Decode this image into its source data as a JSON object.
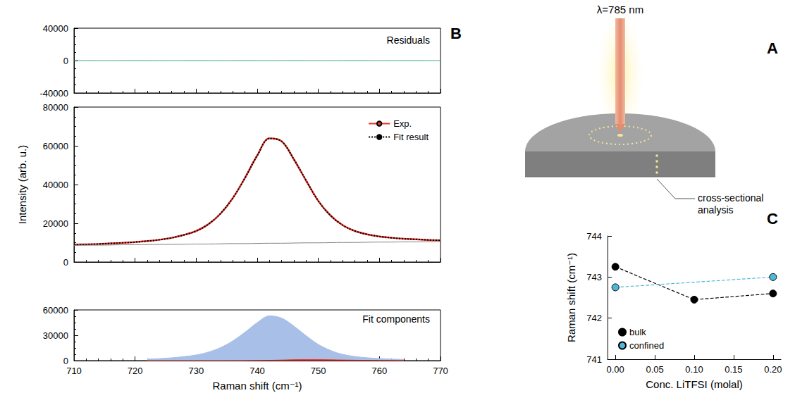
{
  "chart_data": [
    {
      "type": "line",
      "title": "Residuals",
      "annotations": [
        "B"
      ],
      "x": [
        710,
        712,
        714,
        716,
        718,
        720,
        722,
        724,
        726,
        728,
        730,
        732,
        734,
        736,
        738,
        740,
        742,
        744,
        746,
        748,
        750,
        752,
        754,
        756,
        758,
        760,
        762,
        764,
        766,
        768,
        770
      ],
      "series": [
        {
          "color": "#3aa58a",
          "line_style": "solid",
          "values": [
            0,
            50,
            0,
            -50,
            0,
            100,
            0,
            -100,
            0,
            0,
            100,
            0,
            -100,
            0,
            100,
            0,
            -100,
            0,
            100,
            0,
            -100,
            0,
            0,
            50,
            0,
            -50,
            0,
            0,
            50,
            0,
            0
          ]
        }
      ],
      "xlim": [
        710,
        770
      ],
      "xticks": [
        710,
        720,
        730,
        740,
        750,
        760,
        770
      ],
      "ylim": [
        -40000,
        40000
      ],
      "yticks": [
        -40000,
        0,
        40000
      ],
      "tick_labels": "y",
      "grid": false
    },
    {
      "type": "line",
      "ylabel": "Intensity (arb. u.)",
      "x": [
        710,
        712,
        714,
        716,
        718,
        720,
        722,
        724,
        726,
        728,
        730,
        732,
        734,
        736,
        738,
        740,
        742,
        744,
        746,
        748,
        750,
        752,
        754,
        756,
        758,
        760,
        762,
        764,
        766,
        768,
        770
      ],
      "series": [
        {
          "name": "Exp.",
          "color": "#e8312a",
          "line_style": "solid",
          "values": [
            9000,
            9100,
            9300,
            9600,
            9900,
            10300,
            10800,
            11500,
            12500,
            14000,
            16000,
            19500,
            25000,
            33000,
            43500,
            55000,
            63800,
            62300,
            53000,
            42000,
            31500,
            24000,
            19000,
            16000,
            14300,
            13200,
            12500,
            12000,
            11700,
            11400,
            11200
          ]
        },
        {
          "name": "Fit result",
          "color": "#000000",
          "line_style": "dotted",
          "values": [
            9000,
            9100,
            9300,
            9600,
            9900,
            10300,
            10800,
            11500,
            12500,
            14000,
            16000,
            19500,
            25100,
            33000,
            43400,
            55000,
            63800,
            62300,
            53000,
            42100,
            31500,
            24000,
            19000,
            16000,
            14300,
            13200,
            12500,
            12000,
            11700,
            11400,
            11200
          ]
        },
        {
          "color": "#808080",
          "line_style": "solid",
          "values": [
            8600,
            8700,
            8700,
            8800,
            8900,
            8900,
            9000,
            9100,
            9100,
            9200,
            9300,
            9300,
            9400,
            9500,
            9500,
            9600,
            9700,
            9700,
            9800,
            9900,
            9900,
            10000,
            10100,
            10100,
            10200,
            10300,
            10300,
            10400,
            10400,
            10500,
            10600
          ]
        }
      ],
      "xlim": [
        710,
        770
      ],
      "xticks": [
        710,
        720,
        730,
        740,
        750,
        760,
        770
      ],
      "ylim": [
        0,
        80000
      ],
      "yticks": [
        0,
        20000,
        40000,
        60000,
        80000
      ],
      "legend": "upper right",
      "tick_labels": "y",
      "grid": false
    },
    {
      "type": "area",
      "title": "Fit components",
      "xlabel": "Raman shift (cm⁻¹)",
      "x": [
        722,
        724,
        726,
        728,
        730,
        732,
        734,
        736,
        738,
        740,
        742,
        744,
        746,
        748,
        750,
        752,
        754,
        756,
        758,
        760,
        762,
        764
      ],
      "series": [
        {
          "color": "#a8bfe8",
          "values": [
            1800,
            2400,
            3400,
            4800,
            6700,
            10100,
            15500,
            23400,
            33700,
            45000,
            53000,
            50300,
            40900,
            29500,
            19200,
            12100,
            7400,
            4900,
            3400,
            2500,
            1800,
            1400
          ]
        },
        {
          "color": "#e8372a",
          "values": [
            0,
            0,
            0,
            0,
            0,
            0,
            0,
            50,
            100,
            200,
            350,
            700,
            1100,
            1300,
            1200,
            1000,
            750,
            500,
            350,
            250,
            180,
            100
          ]
        }
      ],
      "xlim": [
        710,
        770
      ],
      "xticks": [
        710,
        720,
        730,
        740,
        750,
        760,
        770
      ],
      "ylim": [
        0,
        60000
      ],
      "yticks": [
        0,
        30000,
        60000
      ],
      "grid": false
    },
    {
      "type": "line",
      "annotations": [
        "C"
      ],
      "xlabel": "Conc. LiTFSI (molal)",
      "ylabel": "Raman shift (cm⁻¹)",
      "series": [
        {
          "name": "bulk",
          "color": "#000000",
          "marker": "circle",
          "line_style": "dashed",
          "x": [
            0,
            0.1,
            0.2
          ],
          "values": [
            743.25,
            742.45,
            742.6
          ]
        },
        {
          "name": "confined",
          "color": "#4fb8d8",
          "marker": "circle",
          "line_style": "dashed",
          "x": [
            0,
            0.2
          ],
          "values": [
            742.75,
            743.0
          ]
        }
      ],
      "xlim": [
        -0.01,
        0.21
      ],
      "xticks": [
        {
          "value": 0,
          "label": "0.00"
        },
        {
          "value": 0.05,
          "label": "0.05"
        },
        {
          "value": 0.1,
          "label": "0.10"
        },
        {
          "value": 0.15,
          "label": "0.15"
        },
        {
          "value": 0.2,
          "label": "0.20"
        }
      ],
      "ylim": [
        741,
        744
      ],
      "yticks": [
        741,
        742,
        743,
        744
      ],
      "legend": "lower left",
      "grid": false
    }
  ],
  "diagram": {
    "label": "A",
    "laser": "λ=785 nm",
    "callout": "cross-sectional analysis"
  }
}
